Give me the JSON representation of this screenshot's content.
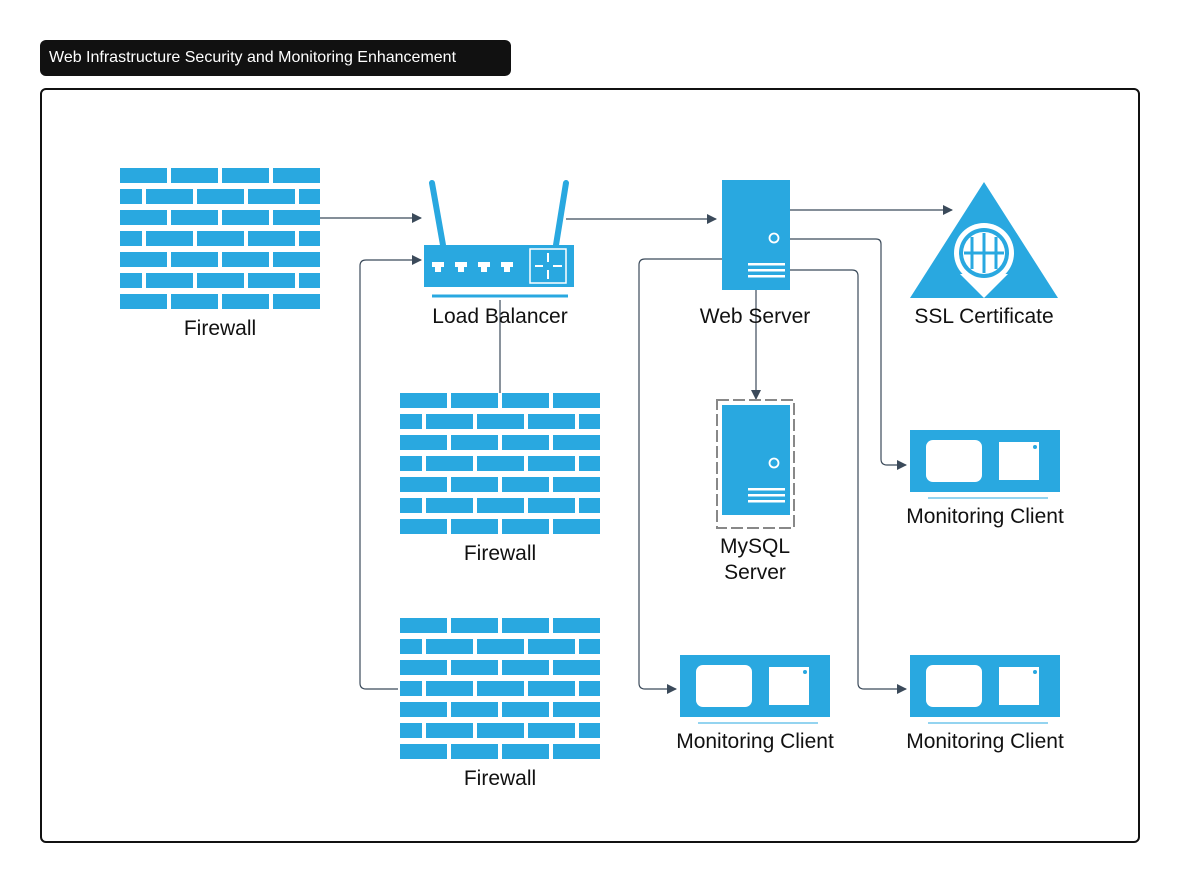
{
  "title": "Web Infrastructure Security and Monitoring Enhancement",
  "colors": {
    "accent": "#29a8e0",
    "line": "#3b4a5a",
    "text": "#111111"
  },
  "nodes": {
    "firewall_1": {
      "label": "Firewall",
      "icon": "firewall-icon"
    },
    "load_balancer": {
      "label": "Load Balancer",
      "icon": "router-icon"
    },
    "web_server": {
      "label": "Web Server",
      "icon": "server-icon"
    },
    "ssl_certificate": {
      "label": "SSL Certificate",
      "icon": "certificate-icon"
    },
    "firewall_2": {
      "label": "Firewall",
      "icon": "firewall-icon"
    },
    "firewall_3": {
      "label": "Firewall",
      "icon": "firewall-icon"
    },
    "mysql_server": {
      "label_line1": "MySQL",
      "label_line2": "Server",
      "icon": "database-server-icon"
    },
    "monitoring_client_1": {
      "label": "Monitoring Client",
      "icon": "monitor-icon"
    },
    "monitoring_client_2": {
      "label": "Monitoring Client",
      "icon": "monitor-icon"
    },
    "monitoring_client_3": {
      "label": "Monitoring Client",
      "icon": "monitor-icon"
    }
  },
  "edges": [
    {
      "from": "Firewall",
      "to": "Load Balancer"
    },
    {
      "from": "Load Balancer",
      "to": "Web Server"
    },
    {
      "from": "Web Server",
      "to": "SSL Certificate"
    },
    {
      "from": "Web Server",
      "to": "MySQL Server"
    },
    {
      "from": "Web Server",
      "to": "Monitoring Client"
    },
    {
      "from": "Web Server",
      "to": "Monitoring Client"
    },
    {
      "from": "Web Server",
      "to": "Monitoring Client"
    },
    {
      "from": "Firewall",
      "to": "Load Balancer"
    },
    {
      "from": "Firewall",
      "to": "Load Balancer"
    }
  ]
}
